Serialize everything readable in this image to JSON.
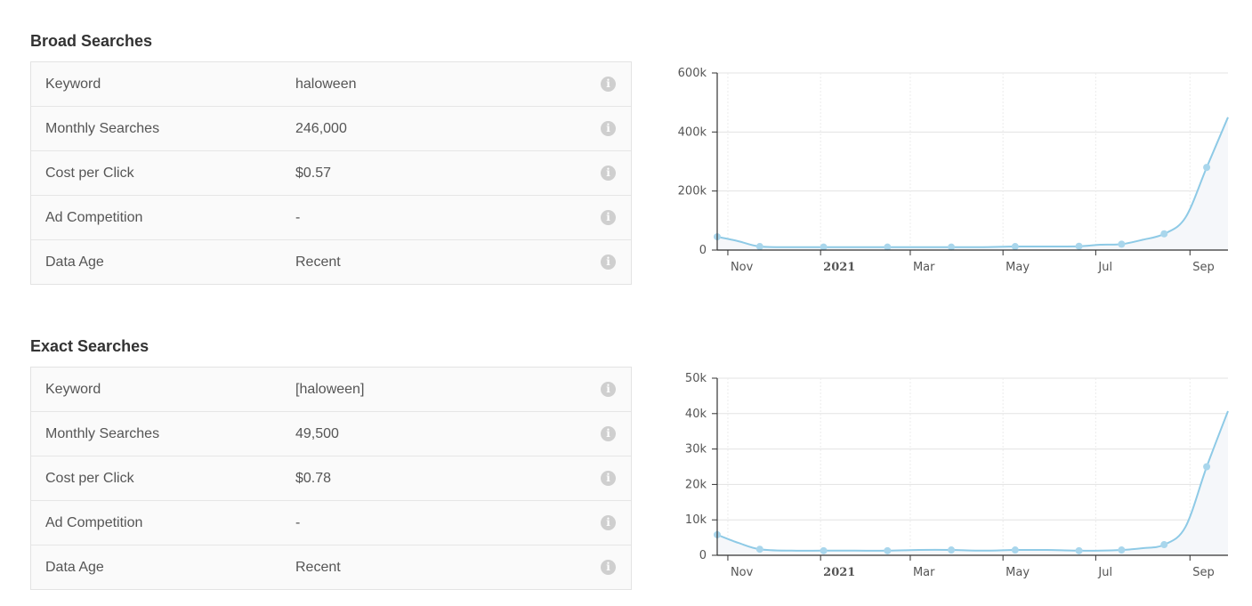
{
  "sections": [
    {
      "title": "Broad Searches",
      "rows": [
        {
          "label": "Keyword",
          "value": "haloween"
        },
        {
          "label": "Monthly Searches",
          "value": "246,000"
        },
        {
          "label": "Cost per Click",
          "value": "$0.57"
        },
        {
          "label": "Ad Competition",
          "value": "-"
        },
        {
          "label": "Data Age",
          "value": "Recent"
        }
      ]
    },
    {
      "title": "Exact Searches",
      "rows": [
        {
          "label": "Keyword",
          "value": "[haloween]"
        },
        {
          "label": "Monthly Searches",
          "value": "49,500"
        },
        {
          "label": "Cost per Click",
          "value": "$0.78"
        },
        {
          "label": "Ad Competition",
          "value": "-"
        },
        {
          "label": "Data Age",
          "value": "Recent"
        }
      ]
    }
  ],
  "info_icon": {
    "glyph": "i",
    "name": "info-icon"
  },
  "colors": {
    "line": "#8ecae6",
    "point": "#a9d6ec",
    "area": "#f5f7fa"
  },
  "chart_data": [
    {
      "type": "area",
      "series": [
        {
          "x": [
            "2020-10-25",
            "2020-11-08",
            "2020-11-22",
            "2020-12-13",
            "2021-01-03",
            "2021-01-24",
            "2021-02-14",
            "2021-03-07",
            "2021-03-28",
            "2021-04-18",
            "2021-05-09",
            "2021-05-30",
            "2021-06-20",
            "2021-07-04",
            "2021-07-18",
            "2021-08-01",
            "2021-08-15",
            "2021-08-29",
            "2021-09-12",
            "2021-09-26"
          ],
          "y": [
            45000,
            30000,
            12000,
            10000,
            10000,
            10000,
            10000,
            10000,
            10000,
            10000,
            12000,
            12000,
            13000,
            18000,
            20000,
            35000,
            55000,
            110000,
            280000,
            450000
          ],
          "markers": [
            0,
            2,
            4,
            6,
            8,
            10,
            12,
            14,
            16,
            18,
            20
          ]
        }
      ],
      "xticks": [
        {
          "date": "2020-11-01",
          "label": "Nov",
          "bold": false
        },
        {
          "date": "2021-01-01",
          "label": "2021",
          "bold": true
        },
        {
          "date": "2021-03-01",
          "label": "Mar",
          "bold": false
        },
        {
          "date": "2021-05-01",
          "label": "May",
          "bold": false
        },
        {
          "date": "2021-07-01",
          "label": "Jul",
          "bold": false
        },
        {
          "date": "2021-09-01",
          "label": "Sep",
          "bold": false
        }
      ],
      "xlim": [
        "2020-10-25",
        "2021-09-26"
      ],
      "ylim": [
        0,
        600000
      ],
      "yticks": [
        0,
        200000,
        400000,
        600000
      ],
      "ytick_labels": [
        "0",
        "200k",
        "400k",
        "600k"
      ],
      "grid": true
    },
    {
      "type": "area",
      "series": [
        {
          "x": [
            "2020-10-25",
            "2020-11-08",
            "2020-11-22",
            "2020-12-13",
            "2021-01-03",
            "2021-01-24",
            "2021-02-14",
            "2021-03-07",
            "2021-03-28",
            "2021-04-18",
            "2021-05-09",
            "2021-05-30",
            "2021-06-20",
            "2021-07-04",
            "2021-07-18",
            "2021-08-01",
            "2021-08-15",
            "2021-08-29",
            "2021-09-12",
            "2021-09-26"
          ],
          "y": [
            5800,
            3500,
            1700,
            1300,
            1300,
            1300,
            1300,
            1500,
            1500,
            1300,
            1500,
            1500,
            1300,
            1300,
            1500,
            2000,
            3000,
            8000,
            25000,
            40700
          ],
          "markers": [
            0,
            2,
            4,
            6,
            8,
            10,
            12,
            14,
            16,
            18,
            20
          ]
        }
      ],
      "xticks": [
        {
          "date": "2020-11-01",
          "label": "Nov",
          "bold": false
        },
        {
          "date": "2021-01-01",
          "label": "2021",
          "bold": true
        },
        {
          "date": "2021-03-01",
          "label": "Mar",
          "bold": false
        },
        {
          "date": "2021-05-01",
          "label": "May",
          "bold": false
        },
        {
          "date": "2021-07-01",
          "label": "Jul",
          "bold": false
        },
        {
          "date": "2021-09-01",
          "label": "Sep",
          "bold": false
        }
      ],
      "xlim": [
        "2020-10-25",
        "2021-09-26"
      ],
      "ylim": [
        0,
        50000
      ],
      "yticks": [
        0,
        10000,
        20000,
        30000,
        40000,
        50000
      ],
      "ytick_labels": [
        "0",
        "10k",
        "20k",
        "30k",
        "40k",
        "50k"
      ],
      "grid": true
    }
  ]
}
